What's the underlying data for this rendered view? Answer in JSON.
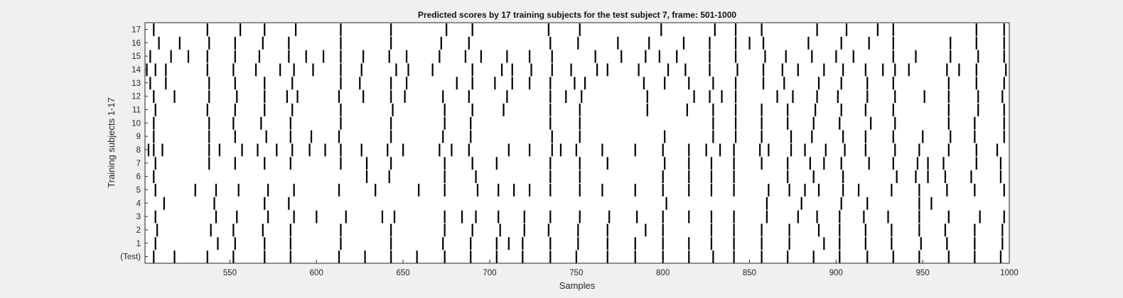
{
  "chart_data": {
    "type": "event-raster",
    "title": "Predicted scores by 17 training subjects for the test subject 7, frame: 501-1000",
    "xlabel": "Samples",
    "ylabel": "Training subjects 1-17",
    "xlim": [
      501,
      1000
    ],
    "x_ticks": [
      550,
      600,
      650,
      700,
      750,
      800,
      850,
      900,
      950,
      1000
    ],
    "y_tick_labels": [
      "(Test)",
      "1",
      "2",
      "3",
      "4",
      "5",
      "6",
      "7",
      "8",
      "9",
      "10",
      "11",
      "12",
      "13",
      "14",
      "15",
      "16",
      "17"
    ],
    "grid": false,
    "colors": {
      "marks": "#000000",
      "plot_bg": "#ffffff",
      "figure_bg": "#f0f0f0"
    },
    "rows": [
      {
        "label": "(Test)",
        "events": [
          506,
          518,
          537,
          552,
          570,
          585,
          613,
          628,
          643,
          658,
          674,
          689,
          704,
          719,
          735,
          750,
          768,
          784,
          800,
          815,
          829,
          841,
          857,
          872,
          887,
          902,
          918,
          933,
          948,
          965,
          980,
          995
        ]
      },
      {
        "label": "1",
        "events": [
          507,
          543,
          553,
          570,
          585,
          614,
          643,
          673,
          689,
          704,
          711,
          719,
          735,
          751,
          768,
          784,
          800,
          815,
          828,
          841,
          857,
          873,
          893,
          902,
          917,
          932,
          949,
          964,
          980,
          996
        ]
      },
      {
        "label": "2",
        "events": [
          508,
          539,
          552,
          569,
          585,
          614,
          643,
          674,
          690,
          706,
          720,
          734,
          751,
          768,
          790,
          800,
          828,
          841,
          857,
          873,
          890,
          902,
          917,
          932,
          948,
          963,
          980,
          996
        ]
      },
      {
        "label": "3",
        "events": [
          507,
          542,
          554,
          572,
          587,
          600,
          617,
          638,
          645,
          674,
          684,
          692,
          705,
          720,
          735,
          752,
          769,
          785,
          800,
          815,
          828,
          841,
          860,
          878,
          889,
          902,
          916,
          930,
          948,
          965,
          983,
          997
        ]
      },
      {
        "label": "4",
        "events": [
          512,
          541,
          570,
          584,
          802,
          860,
          880,
          903,
          918,
          948,
          955
        ]
      },
      {
        "label": "5",
        "events": [
          507,
          530,
          542,
          555,
          572,
          587,
          613,
          634,
          659,
          674,
          693,
          705,
          714,
          723,
          735,
          752,
          765,
          784,
          800,
          815,
          828,
          841,
          861,
          873,
          882,
          890,
          904,
          913,
          932,
          948,
          964,
          980,
          997
        ]
      },
      {
        "label": "6",
        "events": [
          506,
          629,
          642,
          674,
          692,
          735,
          752,
          800,
          815,
          828,
          841,
          872,
          887,
          904,
          935,
          946,
          953,
          963,
          978,
          995
        ]
      },
      {
        "label": "7",
        "events": [
          507,
          538,
          553,
          570,
          585,
          614,
          629,
          643,
          674,
          690,
          704,
          735,
          752,
          768,
          801,
          815,
          828,
          841,
          857,
          872,
          885,
          893,
          903,
          919,
          933,
          947,
          953,
          962,
          981,
          995
        ]
      },
      {
        "label": "8",
        "events": [
          503,
          506,
          511,
          538,
          544,
          557,
          566,
          577,
          586,
          596,
          605,
          614,
          626,
          641,
          650,
          671,
          678,
          688,
          711,
          723,
          736,
          741,
          750,
          765,
          784,
          800,
          815,
          825,
          833,
          841,
          856,
          861,
          874,
          882,
          894,
          905,
          917,
          934,
          948,
          965,
          981,
          993
        ]
      },
      {
        "label": "9",
        "events": [
          506,
          538,
          553,
          571,
          585,
          597,
          613,
          643,
          673,
          689,
          736,
          752,
          801,
          829,
          842,
          857,
          874,
          886,
          904,
          917,
          933,
          950,
          966,
          980,
          997
        ]
      },
      {
        "label": "10",
        "events": [
          506,
          538,
          552,
          568,
          585,
          614,
          643,
          674,
          689,
          735,
          752,
          829,
          842,
          857,
          872,
          887,
          902,
          920,
          934,
          965,
          980,
          997
        ]
      },
      {
        "label": "11",
        "events": [
          507,
          537,
          553,
          570,
          586,
          614,
          644,
          674,
          690,
          708,
          735,
          752,
          791,
          814,
          829,
          842,
          857,
          872,
          888,
          903,
          917,
          933,
          965,
          982,
          997
        ]
      },
      {
        "label": "12",
        "events": [
          506,
          518,
          538,
          554,
          570,
          583,
          589,
          613,
          627,
          643,
          651,
          673,
          688,
          710,
          735,
          744,
          753,
          791,
          818,
          827,
          834,
          842,
          866,
          875,
          889,
          901,
          918,
          934,
          951,
          965,
          982,
          996
        ]
      },
      {
        "label": "13",
        "events": [
          504,
          513,
          538,
          553,
          570,
          586,
          614,
          625,
          643,
          652,
          681,
          690,
          703,
          713,
          723,
          735,
          749,
          755,
          789,
          801,
          815,
          829,
          842,
          858,
          870,
          890,
          903,
          918,
          933,
          965,
          981,
          997
        ]
      },
      {
        "label": "14",
        "events": [
          502,
          507,
          513,
          537,
          552,
          565,
          579,
          587,
          598,
          614,
          626,
          646,
          653,
          667,
          690,
          707,
          713,
          724,
          736,
          747,
          762,
          768,
          786,
          803,
          813,
          827,
          843,
          858,
          869,
          878,
          893,
          904,
          917,
          927,
          934,
          942,
          964,
          971,
          981,
          998
        ]
      },
      {
        "label": "15",
        "events": [
          504,
          516,
          526,
          537,
          553,
          567,
          584,
          594,
          604,
          614,
          627,
          642,
          652,
          671,
          686,
          695,
          710,
          723,
          736,
          761,
          776,
          790,
          798,
          808,
          827,
          842,
          859,
          871,
          886,
          900,
          910,
          933,
          946,
          966,
          982,
          997
        ]
      },
      {
        "label": "16",
        "events": [
          509,
          521,
          538,
          553,
          569,
          584,
          614,
          643,
          672,
          688,
          735,
          751,
          774,
          792,
          812,
          827,
          842,
          850,
          858,
          884,
          903,
          919,
          933,
          966,
          981,
          997
        ]
      },
      {
        "label": "17",
        "events": [
          506,
          537,
          556,
          570,
          588,
          614,
          643,
          675,
          690,
          734,
          752,
          799,
          830,
          842,
          857,
          889,
          906,
          924,
          933,
          981,
          997
        ]
      }
    ]
  }
}
